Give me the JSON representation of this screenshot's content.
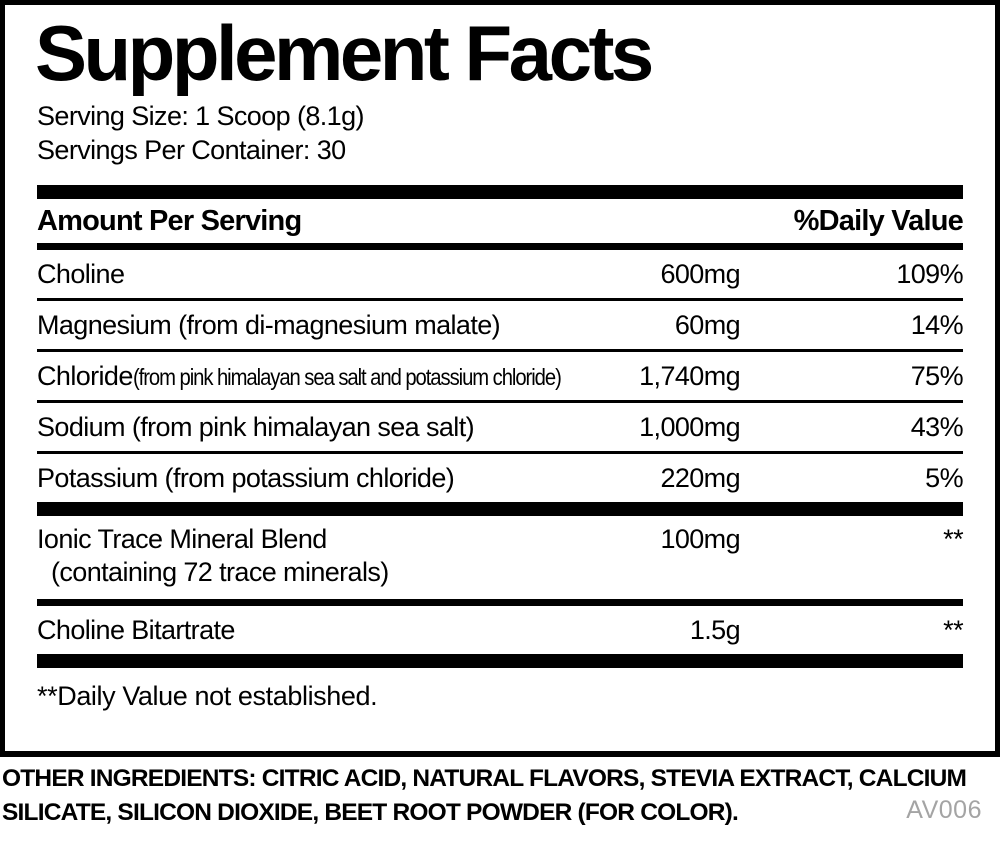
{
  "label": {
    "title": "Supplement Facts",
    "serving_size": "Serving Size: 1 Scoop (8.1g)",
    "servings_per_container": "Servings Per Container: 30",
    "header": {
      "left": "Amount Per Serving",
      "right": "%Daily Value"
    },
    "rows": [
      {
        "name": "Choline",
        "note": "",
        "amount": "600mg",
        "dv": "109%"
      },
      {
        "name": "Magnesium (from di-magnesium malate)",
        "note": "",
        "amount": "60mg",
        "dv": "14%"
      },
      {
        "name": "Chloride",
        "note": " (from pink himalayan sea salt and potassium chloride)",
        "amount": "1,740mg",
        "dv": "75%"
      },
      {
        "name": "Sodium (from pink himalayan sea salt)",
        "note": "",
        "amount": "1,000mg",
        "dv": "43%"
      },
      {
        "name": "Potassium (from potassium chloride)",
        "note": "",
        "amount": "220mg",
        "dv": "5%"
      }
    ],
    "blend_rows": [
      {
        "name": "Ionic Trace Mineral Blend",
        "subtext": "(containing 72 trace minerals)",
        "amount": "100mg",
        "dv": "**"
      },
      {
        "name": "Choline Bitartrate",
        "subtext": "",
        "amount": "1.5g",
        "dv": "**"
      }
    ],
    "footnote": "**Daily Value not established."
  },
  "other_ingredients": "OTHER INGREDIENTS: CITRIC ACID, NATURAL FLAVORS, STEVIA EXTRACT, CALCIUM SILICATE, SILICON DIOXIDE, BEET ROOT POWDER (FOR COLOR).",
  "product_code": "AV006",
  "colors": {
    "text": "#000000",
    "background": "#ffffff",
    "muted_code": "#a4a4a4"
  }
}
